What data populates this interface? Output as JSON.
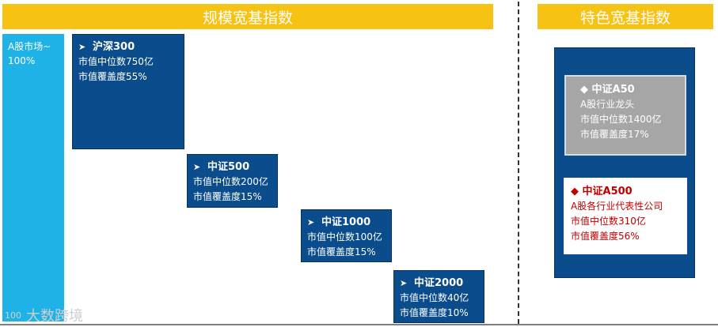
{
  "banners": {
    "left": "规模宽基指数",
    "right": "特色宽基指数"
  },
  "market": {
    "label": "A股市场~",
    "percent": "100%"
  },
  "indices": {
    "hs300": {
      "name": "沪深300",
      "median": "市值中位数750亿",
      "coverage": "市值覆盖度55%"
    },
    "zz500": {
      "name": "中证500",
      "median": "市值中位数200亿",
      "coverage": "市值覆盖度15%"
    },
    "zz1000": {
      "name": "中证1000",
      "median": "市值中位数100亿",
      "coverage": "市值覆盖度15%"
    },
    "zz2000": {
      "name": "中证2000",
      "median": "市值中位数40亿",
      "coverage": "市值覆盖度10%"
    }
  },
  "featured": {
    "a50": {
      "name": "中证A50",
      "desc": "A股行业龙头",
      "median": "市值中位数1400亿",
      "coverage": "市值覆盖度17%"
    },
    "a500": {
      "name": "中证A500",
      "desc": "A股各行业代表性公司",
      "median": "市值中位数310亿",
      "coverage": "市值覆盖度56%"
    }
  },
  "icons": {
    "index_arrow": "arrowhead-right-icon",
    "featured_bullet": "diamond-icon"
  },
  "colors": {
    "banner": "#f6c315",
    "market_bar": "#1fb2e6",
    "index_box": "#0b4d8c",
    "a50_box": "#a6a6a6",
    "a500_text": "#c00000"
  },
  "watermark": {
    "logo": "100",
    "text": "大数跨境"
  }
}
